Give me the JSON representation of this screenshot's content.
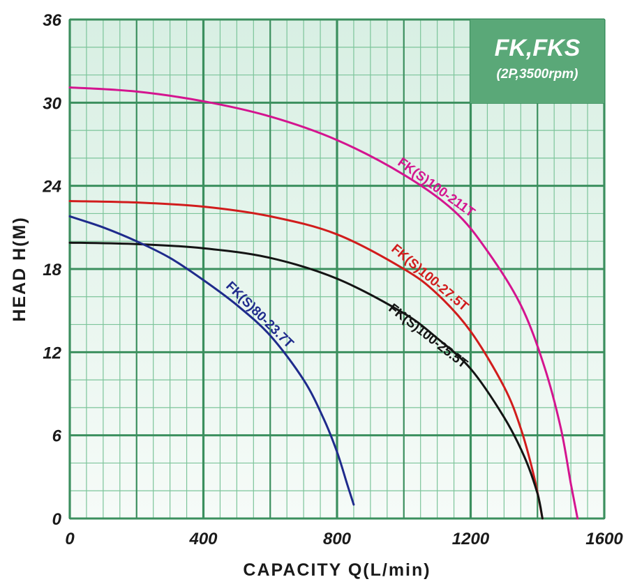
{
  "chart_data": {
    "type": "line",
    "title": "FK,FKS",
    "subtitle": "(2P,3500rpm)",
    "xlabel": "CAPACITY  Q(L/min)",
    "ylabel": "HEAD  H(M)",
    "xlim": [
      0,
      1600
    ],
    "ylim": [
      0,
      36
    ],
    "xticks": [
      "0",
      "400",
      "800",
      "1200",
      "1600"
    ],
    "yticks": [
      "0",
      "6",
      "12",
      "18",
      "24",
      "30",
      "36"
    ],
    "grid": true,
    "series": [
      {
        "name": "FK(S)100-211T",
        "color": "#d4148f",
        "x": [
          0,
          200,
          400,
          600,
          800,
          1000,
          1150,
          1250,
          1350,
          1420,
          1470,
          1500,
          1520
        ],
        "y": [
          31.1,
          30.8,
          30.1,
          29.0,
          27.3,
          24.8,
          22.2,
          19.3,
          15.4,
          11.0,
          6.5,
          2.5,
          0
        ]
      },
      {
        "name": "FK(S)100-27.5T",
        "color": "#d11c1c",
        "x": [
          0,
          200,
          400,
          600,
          800,
          1000,
          1100,
          1200,
          1300,
          1350,
          1390,
          1415
        ],
        "y": [
          22.9,
          22.8,
          22.5,
          21.8,
          20.5,
          18.0,
          16.2,
          13.5,
          9.5,
          6.5,
          3.0,
          0
        ]
      },
      {
        "name": "FK(S)100-25.5T",
        "color": "#141414",
        "x": [
          0,
          200,
          400,
          600,
          800,
          1000,
          1100,
          1200,
          1300,
          1360,
          1400,
          1415
        ],
        "y": [
          19.9,
          19.8,
          19.5,
          18.8,
          17.3,
          14.8,
          13.0,
          10.8,
          7.3,
          4.5,
          1.8,
          0
        ]
      },
      {
        "name": "FK(S)80-23.7T",
        "color": "#1f2b8c",
        "x": [
          0,
          100,
          200,
          300,
          400,
          500,
          600,
          700,
          760,
          800,
          830,
          850
        ],
        "y": [
          21.8,
          21.0,
          20.0,
          18.8,
          17.2,
          15.4,
          13.2,
          10.0,
          7.2,
          4.8,
          2.5,
          1.0
        ]
      }
    ],
    "annotations": [
      "FK(S)100-211T",
      "FK(S)100-27.5T",
      "FK(S)100-25.5T",
      "FK(S)80-23.7T"
    ]
  }
}
